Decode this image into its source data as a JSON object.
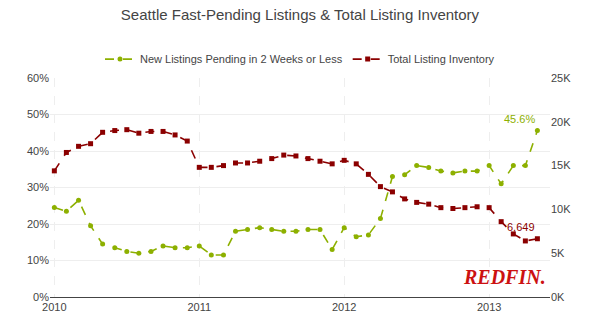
{
  "chart_data": {
    "type": "line",
    "title": "Seattle Fast-Pending Listings & Total Listing Inventory",
    "x": [
      2010.0,
      2010.083,
      2010.167,
      2010.25,
      2010.333,
      2010.417,
      2010.5,
      2010.583,
      2010.667,
      2010.75,
      2010.833,
      2010.917,
      2011.0,
      2011.083,
      2011.167,
      2011.25,
      2011.333,
      2011.417,
      2011.5,
      2011.583,
      2011.667,
      2011.75,
      2011.833,
      2011.917,
      2012.0,
      2012.083,
      2012.167,
      2012.25,
      2012.333,
      2012.417,
      2012.5,
      2012.583,
      2012.667,
      2012.75,
      2012.833,
      2012.917,
      2013.0,
      2013.083,
      2013.167,
      2013.25,
      2013.333
    ],
    "xlim": [
      2009.97,
      2013.42
    ],
    "xticks": [
      2010,
      2011,
      2012,
      2013
    ],
    "ylim": [
      0,
      0.6
    ],
    "yticks": [
      {
        "value": 0,
        "label": "0%"
      },
      {
        "value": 0.1,
        "label": "10%"
      },
      {
        "value": 0.2,
        "label": "20%"
      },
      {
        "value": 0.3,
        "label": "30%"
      },
      {
        "value": 0.4,
        "label": "40%"
      },
      {
        "value": 0.5,
        "label": "50%"
      },
      {
        "value": 0.6,
        "label": "60%"
      }
    ],
    "y2lim": [
      0,
      25000
    ],
    "y2ticks": [
      {
        "value": 0,
        "label": "0K"
      },
      {
        "value": 5000,
        "label": "5K"
      },
      {
        "value": 10000,
        "label": "10K"
      },
      {
        "value": 15000,
        "label": "15K"
      },
      {
        "value": 20000,
        "label": "20K"
      },
      {
        "value": 25000,
        "label": "25K"
      }
    ],
    "grid": true,
    "legend": "top",
    "series": [
      {
        "name": "New Listings Pending in 2 Weeks or Less",
        "color": "#8db000",
        "marker": "circle",
        "line_style": "dash",
        "values": [
          0.245,
          0.235,
          0.265,
          0.195,
          0.145,
          0.135,
          0.125,
          0.12,
          0.125,
          0.14,
          0.135,
          0.135,
          0.14,
          0.115,
          0.115,
          0.18,
          0.185,
          0.19,
          0.185,
          0.18,
          0.18,
          0.185,
          0.185,
          0.13,
          0.19,
          0.165,
          0.17,
          0.215,
          0.33,
          0.335,
          0.36,
          0.355,
          0.345,
          0.34,
          0.345,
          0.345,
          0.36,
          0.31,
          0.36,
          0.36,
          0.456
        ]
      },
      {
        "name": "Total Listing Inventory",
        "color": "#8b0000",
        "marker": "square",
        "line_style": "dash",
        "axis": "y2",
        "values": [
          14400,
          16500,
          17200,
          17500,
          18800,
          19000,
          19100,
          18700,
          18900,
          18900,
          18500,
          17800,
          14800,
          14800,
          15000,
          15300,
          15300,
          15500,
          15800,
          16200,
          16100,
          15800,
          15500,
          15200,
          15600,
          15200,
          14000,
          12600,
          12000,
          11200,
          10800,
          10600,
          10200,
          10100,
          10200,
          10300,
          10200,
          8600,
          7200,
          6400,
          6649
        ]
      }
    ],
    "annotations": [
      {
        "text": "45.6%",
        "x": 2013.333,
        "y": 0.456,
        "color": "#8db000"
      },
      {
        "text": "6,649",
        "x": 2013.333,
        "y": 6649,
        "axis": "y2",
        "color": "#8b0000"
      },
      {
        "text": "REDFIN.",
        "color": "#cc1111"
      }
    ]
  }
}
